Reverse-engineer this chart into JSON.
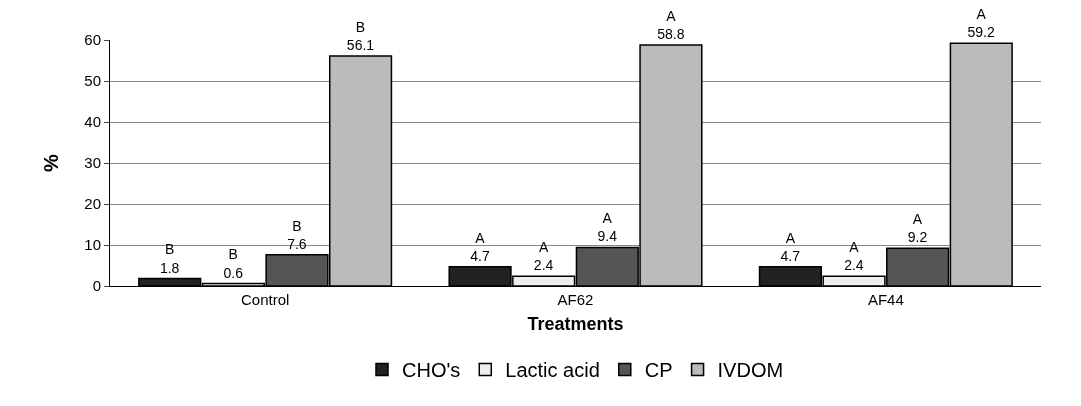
{
  "chart_data": {
    "type": "bar",
    "categories": [
      "Control",
      "AF62",
      "AF44"
    ],
    "xlabel": "Treatments",
    "ylabel": "%",
    "ylim": [
      0,
      60
    ],
    "yticks": [
      0,
      10,
      20,
      30,
      40,
      50,
      60
    ],
    "grid": "y",
    "legend": "bottom",
    "series": [
      {
        "name": "CHO's",
        "color": "#222222",
        "values": [
          1.8,
          4.7,
          4.7
        ],
        "value_labels": [
          "B\n1.8",
          "A\n4.7",
          "A\n4.7"
        ]
      },
      {
        "name": "Lactic acid",
        "color": "#eeeeee",
        "values": [
          0.6,
          2.4,
          2.4
        ],
        "value_labels": [
          "B\n0.6",
          "A\n2.4",
          "A\n2.4"
        ]
      },
      {
        "name": "CP",
        "color": "#555555",
        "values": [
          7.6,
          9.4,
          9.2
        ],
        "value_labels": [
          "B\n7.6",
          "A\n9.4",
          "A\n9.2"
        ]
      },
      {
        "name": "IVDOM",
        "color": "#bbbbbb",
        "values": [
          56.1,
          58.8,
          59.2
        ],
        "value_labels": [
          "B\n56.1",
          "A\n58.8",
          "A\n59.2"
        ]
      }
    ]
  }
}
